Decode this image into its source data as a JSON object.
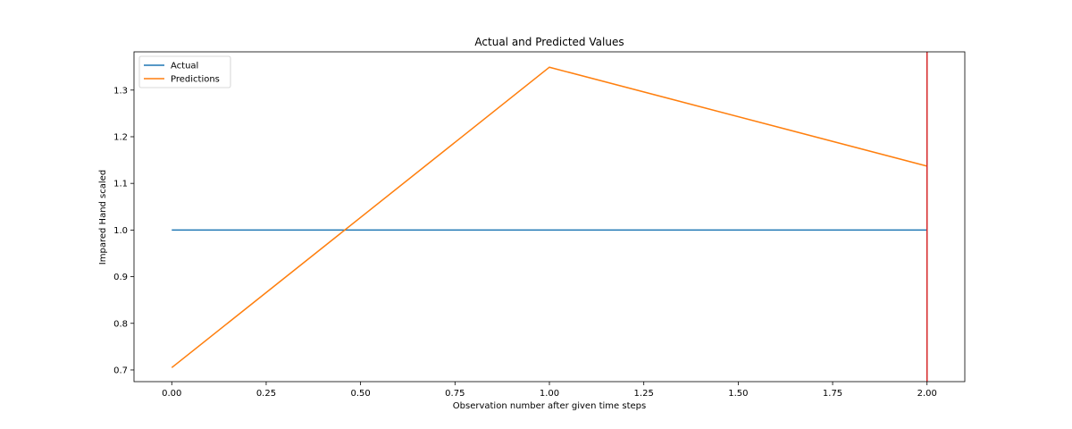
{
  "chart_data": {
    "type": "line",
    "title": "Actual and Predicted Values",
    "xlabel": "Observation number after given time steps",
    "ylabel": "Impared Hand scaled",
    "xlim": [
      -0.1,
      2.1
    ],
    "ylim": [
      0.675,
      1.382
    ],
    "xticks": [
      0.0,
      0.25,
      0.5,
      0.75,
      1.0,
      1.25,
      1.5,
      1.75,
      2.0
    ],
    "xtick_labels": [
      "0.00",
      "0.25",
      "0.50",
      "0.75",
      "1.00",
      "1.25",
      "1.50",
      "1.75",
      "2.00"
    ],
    "yticks": [
      0.7,
      0.8,
      0.9,
      1.0,
      1.1,
      1.2,
      1.3
    ],
    "ytick_labels": [
      "0.7",
      "0.8",
      "0.9",
      "1.0",
      "1.1",
      "1.2",
      "1.3"
    ],
    "x": [
      0,
      1,
      2
    ],
    "series": [
      {
        "name": "Actual",
        "values": [
          1.0,
          1.0,
          1.0
        ],
        "color": "#1f77b4"
      },
      {
        "name": "Predictions",
        "values": [
          0.705,
          1.349,
          1.137
        ],
        "color": "#ff7f0e"
      }
    ],
    "vline": {
      "x": 2.0,
      "color": "#d62728"
    },
    "grid": false,
    "legend": "top-left"
  }
}
